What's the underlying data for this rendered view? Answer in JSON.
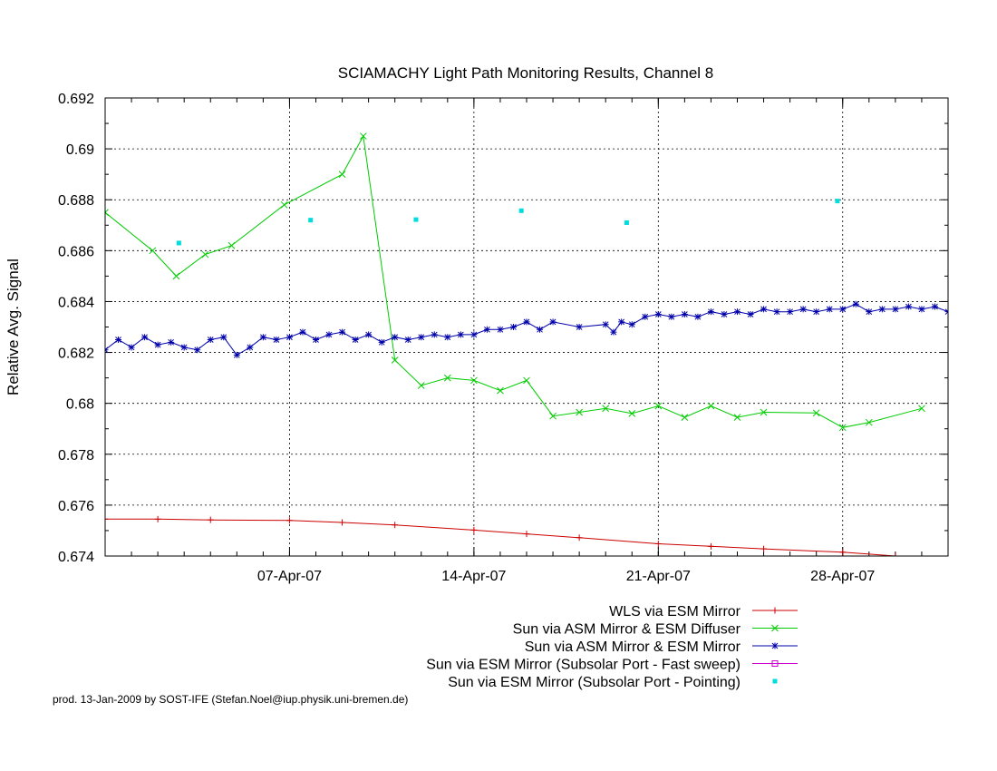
{
  "chart_data": {
    "type": "line",
    "title": "SCIAMACHY Light Path Monitoring Results, Channel 8",
    "xlabel": "",
    "ylabel": "Relative Avg. Signal",
    "xlim": [
      "2007-03-31",
      "2007-05-02"
    ],
    "ylim": [
      0.674,
      0.692
    ],
    "grid": true,
    "x_ticks": [
      {
        "date": "2007-04-07",
        "label": "07-Apr-07"
      },
      {
        "date": "2007-04-14",
        "label": "14-Apr-07"
      },
      {
        "date": "2007-04-21",
        "label": "21-Apr-07"
      },
      {
        "date": "2007-04-28",
        "label": "28-Apr-07"
      }
    ],
    "y_ticks": [
      {
        "value": 0.674,
        "label": "0.674"
      },
      {
        "value": 0.676,
        "label": "0.676"
      },
      {
        "value": 0.678,
        "label": "0.678"
      },
      {
        "value": 0.68,
        "label": "0.68"
      },
      {
        "value": 0.682,
        "label": "0.682"
      },
      {
        "value": 0.684,
        "label": "0.684"
      },
      {
        "value": 0.686,
        "label": "0.686"
      },
      {
        "value": 0.688,
        "label": "0.688"
      },
      {
        "value": 0.69,
        "label": "0.69"
      },
      {
        "value": 0.692,
        "label": "0.692"
      }
    ],
    "legend_position": "bottom-right, below plot",
    "series": [
      {
        "name": "WLS via ESM Mirror",
        "color": "#cc0000",
        "style": "line-with-points",
        "marker": "plus",
        "points": [
          {
            "x": "2007-03-31",
            "y": 0.67545
          },
          {
            "x": "2007-04-02",
            "y": 0.67545
          },
          {
            "x": "2007-04-04",
            "y": 0.67542
          },
          {
            "x": "2007-04-07",
            "y": 0.6754
          },
          {
            "x": "2007-04-09",
            "y": 0.67532
          },
          {
            "x": "2007-04-11",
            "y": 0.67522
          },
          {
            "x": "2007-04-14",
            "y": 0.67502
          },
          {
            "x": "2007-04-16",
            "y": 0.67487
          },
          {
            "x": "2007-04-18",
            "y": 0.67472
          },
          {
            "x": "2007-04-21",
            "y": 0.67448
          },
          {
            "x": "2007-04-23",
            "y": 0.67438
          },
          {
            "x": "2007-04-25",
            "y": 0.67428
          },
          {
            "x": "2007-04-28",
            "y": 0.67415
          },
          {
            "x": "2007-04-30",
            "y": 0.674
          }
        ]
      },
      {
        "name": "Sun via ASM Mirror & ESM Diffuser",
        "color": "#00cc00",
        "style": "line-with-points",
        "marker": "cross",
        "points": [
          {
            "x": "2007-03-31",
            "y": 0.6875
          },
          {
            "x": "2007-04-01.8",
            "y": 0.686
          },
          {
            "x": "2007-04-02.7",
            "y": 0.685
          },
          {
            "x": "2007-04-03.8",
            "y": 0.68585
          },
          {
            "x": "2007-04-04.8",
            "y": 0.6862
          },
          {
            "x": "2007-04-06.8",
            "y": 0.6878
          },
          {
            "x": "2007-04-09",
            "y": 0.689
          },
          {
            "x": "2007-04-09.8",
            "y": 0.6905
          },
          {
            "x": "2007-04-11",
            "y": 0.6817
          },
          {
            "x": "2007-04-12",
            "y": 0.6807
          },
          {
            "x": "2007-04-13",
            "y": 0.681
          },
          {
            "x": "2007-04-14",
            "y": 0.6809
          },
          {
            "x": "2007-04-15",
            "y": 0.6805
          },
          {
            "x": "2007-04-16",
            "y": 0.6809
          },
          {
            "x": "2007-04-17",
            "y": 0.6795
          },
          {
            "x": "2007-04-18",
            "y": 0.67965
          },
          {
            "x": "2007-04-19",
            "y": 0.6798
          },
          {
            "x": "2007-04-20",
            "y": 0.6796
          },
          {
            "x": "2007-04-21",
            "y": 0.6799
          },
          {
            "x": "2007-04-22",
            "y": 0.67945
          },
          {
            "x": "2007-04-23",
            "y": 0.6799
          },
          {
            "x": "2007-04-24",
            "y": 0.67945
          },
          {
            "x": "2007-04-25",
            "y": 0.67965
          },
          {
            "x": "2007-04-27",
            "y": 0.67962
          },
          {
            "x": "2007-04-28",
            "y": 0.67905
          },
          {
            "x": "2007-04-29",
            "y": 0.67925
          },
          {
            "x": "2007-05-01",
            "y": 0.6798
          }
        ]
      },
      {
        "name": "Sun via ASM Mirror & ESM Mirror",
        "color": "#0000aa",
        "style": "line-with-points",
        "marker": "star",
        "points": [
          {
            "x": "2007-03-31",
            "y": 0.6821
          },
          {
            "x": "2007-03-31.5",
            "y": 0.6825
          },
          {
            "x": "2007-04-01",
            "y": 0.6822
          },
          {
            "x": "2007-04-01.5",
            "y": 0.6826
          },
          {
            "x": "2007-04-02",
            "y": 0.6823
          },
          {
            "x": "2007-04-02.5",
            "y": 0.6824
          },
          {
            "x": "2007-04-03",
            "y": 0.6822
          },
          {
            "x": "2007-04-03.5",
            "y": 0.6821
          },
          {
            "x": "2007-04-04",
            "y": 0.6825
          },
          {
            "x": "2007-04-04.5",
            "y": 0.6826
          },
          {
            "x": "2007-04-05",
            "y": 0.6819
          },
          {
            "x": "2007-04-05.5",
            "y": 0.6822
          },
          {
            "x": "2007-04-06",
            "y": 0.6826
          },
          {
            "x": "2007-04-06.5",
            "y": 0.6825
          },
          {
            "x": "2007-04-07",
            "y": 0.6826
          },
          {
            "x": "2007-04-07.5",
            "y": 0.6828
          },
          {
            "x": "2007-04-08",
            "y": 0.6825
          },
          {
            "x": "2007-04-08.5",
            "y": 0.6827
          },
          {
            "x": "2007-04-09",
            "y": 0.6828
          },
          {
            "x": "2007-04-09.5",
            "y": 0.6825
          },
          {
            "x": "2007-04-10",
            "y": 0.6827
          },
          {
            "x": "2007-04-10.5",
            "y": 0.6824
          },
          {
            "x": "2007-04-11",
            "y": 0.6826
          },
          {
            "x": "2007-04-11.5",
            "y": 0.6825
          },
          {
            "x": "2007-04-12",
            "y": 0.6826
          },
          {
            "x": "2007-04-12.5",
            "y": 0.6827
          },
          {
            "x": "2007-04-13",
            "y": 0.6826
          },
          {
            "x": "2007-04-13.5",
            "y": 0.6827
          },
          {
            "x": "2007-04-14",
            "y": 0.6827
          },
          {
            "x": "2007-04-14.5",
            "y": 0.6829
          },
          {
            "x": "2007-04-15",
            "y": 0.6829
          },
          {
            "x": "2007-04-15.5",
            "y": 0.683
          },
          {
            "x": "2007-04-16",
            "y": 0.6832
          },
          {
            "x": "2007-04-16.5",
            "y": 0.6829
          },
          {
            "x": "2007-04-17",
            "y": 0.6832
          },
          {
            "x": "2007-04-18",
            "y": 0.683
          },
          {
            "x": "2007-04-19",
            "y": 0.6831
          },
          {
            "x": "2007-04-19.3",
            "y": 0.6828
          },
          {
            "x": "2007-04-19.6",
            "y": 0.6832
          },
          {
            "x": "2007-04-20",
            "y": 0.6831
          },
          {
            "x": "2007-04-20.5",
            "y": 0.6834
          },
          {
            "x": "2007-04-21",
            "y": 0.6835
          },
          {
            "x": "2007-04-21.5",
            "y": 0.6834
          },
          {
            "x": "2007-04-22",
            "y": 0.6835
          },
          {
            "x": "2007-04-22.5",
            "y": 0.6834
          },
          {
            "x": "2007-04-23",
            "y": 0.6836
          },
          {
            "x": "2007-04-23.5",
            "y": 0.6835
          },
          {
            "x": "2007-04-24",
            "y": 0.6836
          },
          {
            "x": "2007-04-24.5",
            "y": 0.6835
          },
          {
            "x": "2007-04-25",
            "y": 0.6837
          },
          {
            "x": "2007-04-25.5",
            "y": 0.6836
          },
          {
            "x": "2007-04-26",
            "y": 0.6836
          },
          {
            "x": "2007-04-26.5",
            "y": 0.6837
          },
          {
            "x": "2007-04-27",
            "y": 0.6836
          },
          {
            "x": "2007-04-27.5",
            "y": 0.6837
          },
          {
            "x": "2007-04-28",
            "y": 0.6837
          },
          {
            "x": "2007-04-28.5",
            "y": 0.6839
          },
          {
            "x": "2007-04-29",
            "y": 0.6836
          },
          {
            "x": "2007-04-29.5",
            "y": 0.6837
          },
          {
            "x": "2007-04-30",
            "y": 0.6837
          },
          {
            "x": "2007-04-30.5",
            "y": 0.6838
          },
          {
            "x": "2007-05-01",
            "y": 0.6837
          },
          {
            "x": "2007-05-01.5",
            "y": 0.6838
          },
          {
            "x": "2007-05-02",
            "y": 0.6836
          }
        ]
      },
      {
        "name": "Sun via ESM Mirror (Subsolar Port - Fast sweep)",
        "color": "#cc00cc",
        "style": "line-with-points",
        "marker": "square",
        "points": []
      },
      {
        "name": "Sun via ESM Mirror (Subsolar Port - Pointing)",
        "color": "#00dddd",
        "style": "points",
        "marker": "dot",
        "points": [
          {
            "x": "2007-04-02.8",
            "y": 0.6863
          },
          {
            "x": "2007-04-07.8",
            "y": 0.6872
          },
          {
            "x": "2007-04-11.8",
            "y": 0.68722
          },
          {
            "x": "2007-04-15.8",
            "y": 0.68757
          },
          {
            "x": "2007-04-19.8",
            "y": 0.6871
          },
          {
            "x": "2007-04-27.8",
            "y": 0.68795
          }
        ]
      }
    ]
  },
  "footer": {
    "credit": "prod. 13-Jan-2009 by SOST-IFE (Stefan.Noel@iup.physik.uni-bremen.de)"
  }
}
